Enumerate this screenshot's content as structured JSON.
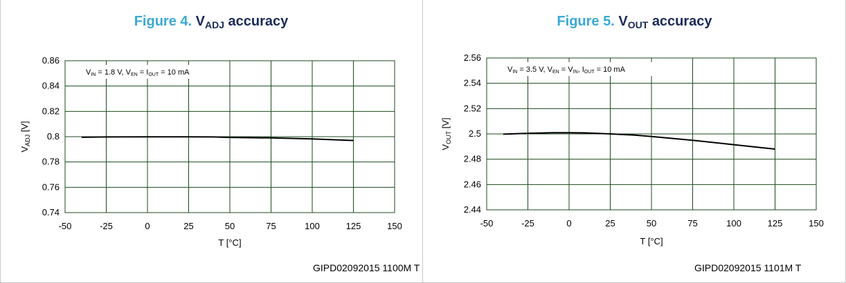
{
  "panels": [
    {
      "title_prefix": "Figure 4.",
      "title_var": "V",
      "title_sub": "ADJ",
      "title_suffix": "accuracy",
      "code": "GIPD02092015   1100M T"
    },
    {
      "title_prefix": "Figure 5.",
      "title_var": "V",
      "title_sub": "OUT",
      "title_suffix": "accuracy",
      "code": "GIPD02092015   1101M T"
    }
  ],
  "chart_data": [
    {
      "type": "line",
      "xlabel": "T  [°C]",
      "ylabel": "V",
      "ylabel_sub": "ADJ",
      "ylabel_unit": " [V]",
      "annotation": [
        {
          "t": "V"
        },
        {
          "t": "IN",
          "sub": true
        },
        {
          "t": " = 1.8 V, V"
        },
        {
          "t": "EN",
          "sub": true
        },
        {
          "t": " = I"
        },
        {
          "t": "OUT",
          "sub": true
        },
        {
          "t": " = 10 mA"
        }
      ],
      "xlim": [
        -50,
        150
      ],
      "ylim": [
        0.74,
        0.86
      ],
      "xticks": [
        -50,
        -25,
        0,
        25,
        50,
        75,
        100,
        125,
        150
      ],
      "xtick_labels": [
        "-50",
        "-25",
        "0",
        "25",
        "50",
        "75",
        "100",
        "125",
        "150"
      ],
      "yticks": [
        0.74,
        0.76,
        0.78,
        0.8,
        0.82,
        0.84,
        0.86
      ],
      "ytick_labels": [
        "0.74",
        "0.76",
        "0.78",
        "0.8",
        "0.82",
        "0.84",
        "0.86"
      ],
      "grid": true,
      "series": [
        {
          "x": [
            -40,
            -25,
            0,
            25,
            40,
            50,
            75,
            100,
            125
          ],
          "y": [
            0.7995,
            0.7998,
            0.7999,
            0.7999,
            0.7998,
            0.7994,
            0.799,
            0.7982,
            0.797
          ]
        }
      ]
    },
    {
      "type": "line",
      "xlabel": "T  [°C]",
      "ylabel": "V",
      "ylabel_sub": "OUT",
      "ylabel_unit": " [V]",
      "annotation": [
        {
          "t": "V"
        },
        {
          "t": "IN",
          "sub": true
        },
        {
          "t": " = 3.5 V, V"
        },
        {
          "t": "EN",
          "sub": true
        },
        {
          "t": " = V"
        },
        {
          "t": "IN",
          "sub": true
        },
        {
          "t": ", I"
        },
        {
          "t": "OUT",
          "sub": true
        },
        {
          "t": " = 10 mA"
        }
      ],
      "xlim": [
        -50,
        150
      ],
      "ylim": [
        2.44,
        2.56
      ],
      "xticks": [
        -50,
        -25,
        0,
        25,
        50,
        75,
        100,
        125,
        150
      ],
      "xtick_labels": [
        "-50",
        "-25",
        "0",
        "25",
        "50",
        "75",
        "100",
        "125",
        "150"
      ],
      "yticks": [
        2.44,
        2.46,
        2.48,
        2.5,
        2.52,
        2.54,
        2.56
      ],
      "ytick_labels": [
        "2.44",
        "2.46",
        "2.48",
        "2.5",
        "2.52",
        "2.54",
        "2.56"
      ],
      "grid": true,
      "series": [
        {
          "x": [
            -40,
            -25,
            -10,
            0,
            10,
            25,
            40,
            50,
            75,
            100,
            125
          ],
          "y": [
            2.4998,
            2.5005,
            2.5009,
            2.501,
            2.5008,
            2.5,
            2.499,
            2.498,
            2.495,
            2.4915,
            2.488
          ]
        }
      ]
    }
  ]
}
